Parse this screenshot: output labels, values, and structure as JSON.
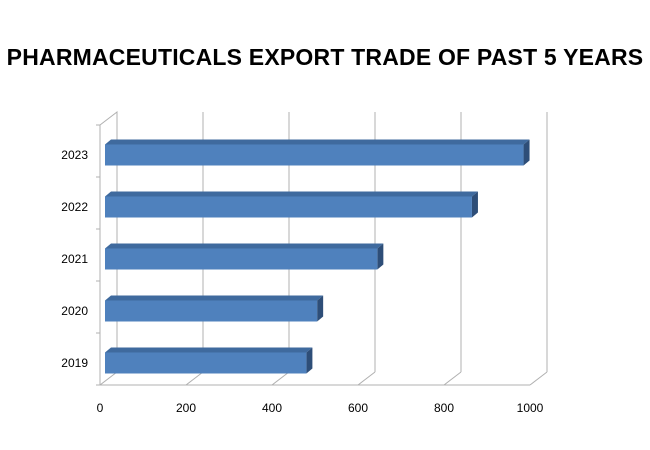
{
  "chart_data": {
    "type": "bar",
    "orientation": "horizontal",
    "style": "3d",
    "title": "PHARMACEUTICALS EXPORT TRADE OF PAST 5 YEARS",
    "categories": [
      "2019",
      "2020",
      "2021",
      "2022",
      "2023"
    ],
    "values": [
      480,
      505,
      645,
      865,
      985
    ],
    "xlim": [
      0,
      1000
    ],
    "xticks": [
      "0",
      "200",
      "400",
      "600",
      "800",
      "1000"
    ],
    "xlabel": "",
    "ylabel": "",
    "grid": true,
    "legend": "none",
    "colors": {
      "bar_front": "#4F81BD",
      "bar_top": "#3F6A9E",
      "bar_side": "#2E4E78",
      "grid": "#b0b0b0"
    }
  }
}
